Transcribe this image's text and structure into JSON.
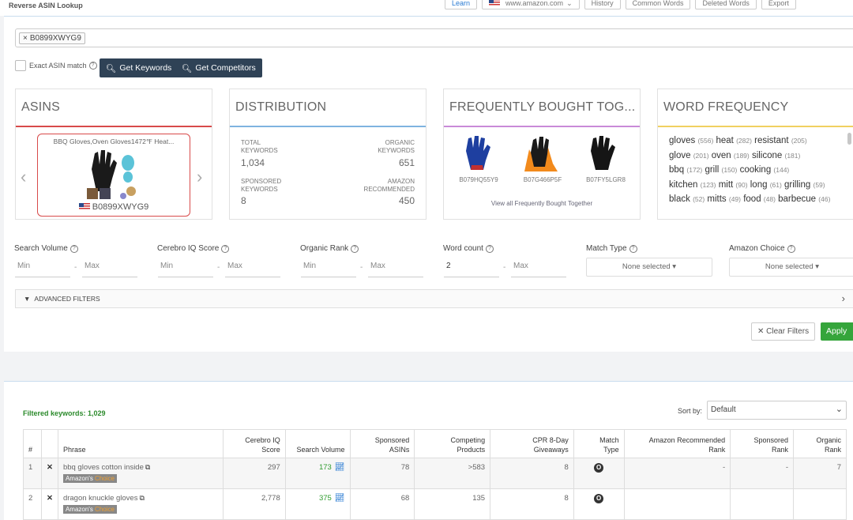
{
  "header": {
    "title": "Reverse ASIN Lookup",
    "buttons": [
      "Learn",
      "www.amazon.com",
      "History",
      "Common Words",
      "Deleted Words",
      "Export"
    ]
  },
  "search": {
    "asin_tag": "B0899XWYG9",
    "exact_match_label": "Exact ASIN match",
    "get_keywords": "Get Keywords",
    "get_competitors": "Get Competitors"
  },
  "panels": {
    "asins": {
      "title": "ASINS",
      "product_title": "BBQ Gloves,Oven Gloves1472℉ Heat...",
      "code": "B0899XWYG9"
    },
    "distribution": {
      "title": "DISTRIBUTION",
      "total_label_1": "TOTAL",
      "total_label_2": "KEYWORDS",
      "total_value": "1,034",
      "organic_label_1": "ORGANIC",
      "organic_label_2": "KEYWORDS",
      "organic_value": "651",
      "sponsored_label_1": "SPONSORED",
      "sponsored_label_2": "KEYWORDS",
      "sponsored_value": "8",
      "amazon_label_1": "AMAZON",
      "amazon_label_2": "RECOMMENDED",
      "amazon_value": "450"
    },
    "fbt": {
      "title": "FREQUENTLY BOUGHT TOG...",
      "items": [
        "B079HQ55Y9",
        "B07G466P5F",
        "B07FY5LGR8"
      ],
      "link": "View all Frequently Bought Together"
    },
    "word_frequency": {
      "title": "WORD FREQUENCY",
      "lines": [
        [
          [
            "gloves",
            "(556)"
          ],
          [
            "heat",
            "(282)"
          ],
          [
            "resistant",
            "(205)"
          ]
        ],
        [
          [
            "glove",
            "(201)"
          ],
          [
            "oven",
            "(189)"
          ],
          [
            "silicone",
            "(181)"
          ]
        ],
        [
          [
            "bbq",
            "(172)"
          ],
          [
            "grill",
            "(150)"
          ],
          [
            "cooking",
            "(144)"
          ]
        ],
        [
          [
            "kitchen",
            "(123)"
          ],
          [
            "mitt",
            "(90)"
          ],
          [
            "long",
            "(61)"
          ],
          [
            "grilling",
            "(59)"
          ]
        ],
        [
          [
            "black",
            "(52)"
          ],
          [
            "mitts",
            "(49)"
          ],
          [
            "food",
            "(48)"
          ],
          [
            "barbecue",
            "(46)"
          ]
        ]
      ]
    }
  },
  "filters": {
    "search_volume": "Search Volume",
    "cerebro_iq": "Cerebro IQ Score",
    "organic_rank": "Organic Rank",
    "word_count": "Word count",
    "match_type": "Match Type",
    "amazon_choice": "Amazon Choice",
    "min": "Min",
    "max": "Max",
    "word_count_min": "2",
    "none_selected": "None selected",
    "advanced": "ADVANCED FILTERS",
    "clear": "Clear Filters",
    "apply": "Apply"
  },
  "table": {
    "filtered": "Filtered keywords: 1,029",
    "sort_label": "Sort by:",
    "sort_value": "Default",
    "headers": {
      "num": "#",
      "phrase": "Phrase",
      "ciq_1": "Cerebro IQ",
      "ciq_2": "Score",
      "sv": "Search Volume",
      "sa_1": "Sponsored",
      "sa_2": "ASINs",
      "cp_1": "Competing",
      "cp_2": "Products",
      "cpr_1": "CPR 8-Day",
      "cpr_2": "Giveaways",
      "mt_1": "Match",
      "mt_2": "Type",
      "arr_1": "Amazon Recommended",
      "arr_2": "Rank",
      "sr_1": "Sponsored",
      "sr_2": "Rank",
      "or": "Organic Rank"
    },
    "choice_1": "Amazon's",
    "choice_2": "Choice",
    "rows": [
      {
        "num": "1",
        "phrase": "bbq gloves cotton inside",
        "ciq": "297",
        "sv": "173",
        "sa": "78",
        "cp": ">583",
        "cpr": "8",
        "mt": "O",
        "arr": "-",
        "sr": "-",
        "or": "7"
      },
      {
        "num": "2",
        "phrase": "dragon knuckle gloves",
        "ciq": "2,778",
        "sv": "375",
        "sa": "68",
        "cp": "135",
        "cpr": "8",
        "mt": "O",
        "arr": "",
        "sr": "",
        "or": ""
      }
    ]
  },
  "colors": {
    "accent_blue": "#2a7bd3",
    "apply_green": "#35a53b",
    "dark_button": "#2f4256",
    "asins_line": "#d84a4a",
    "dist_line": "#7fb3e0",
    "fbt_line": "#c98ad8",
    "wf_line": "#f0d060"
  }
}
